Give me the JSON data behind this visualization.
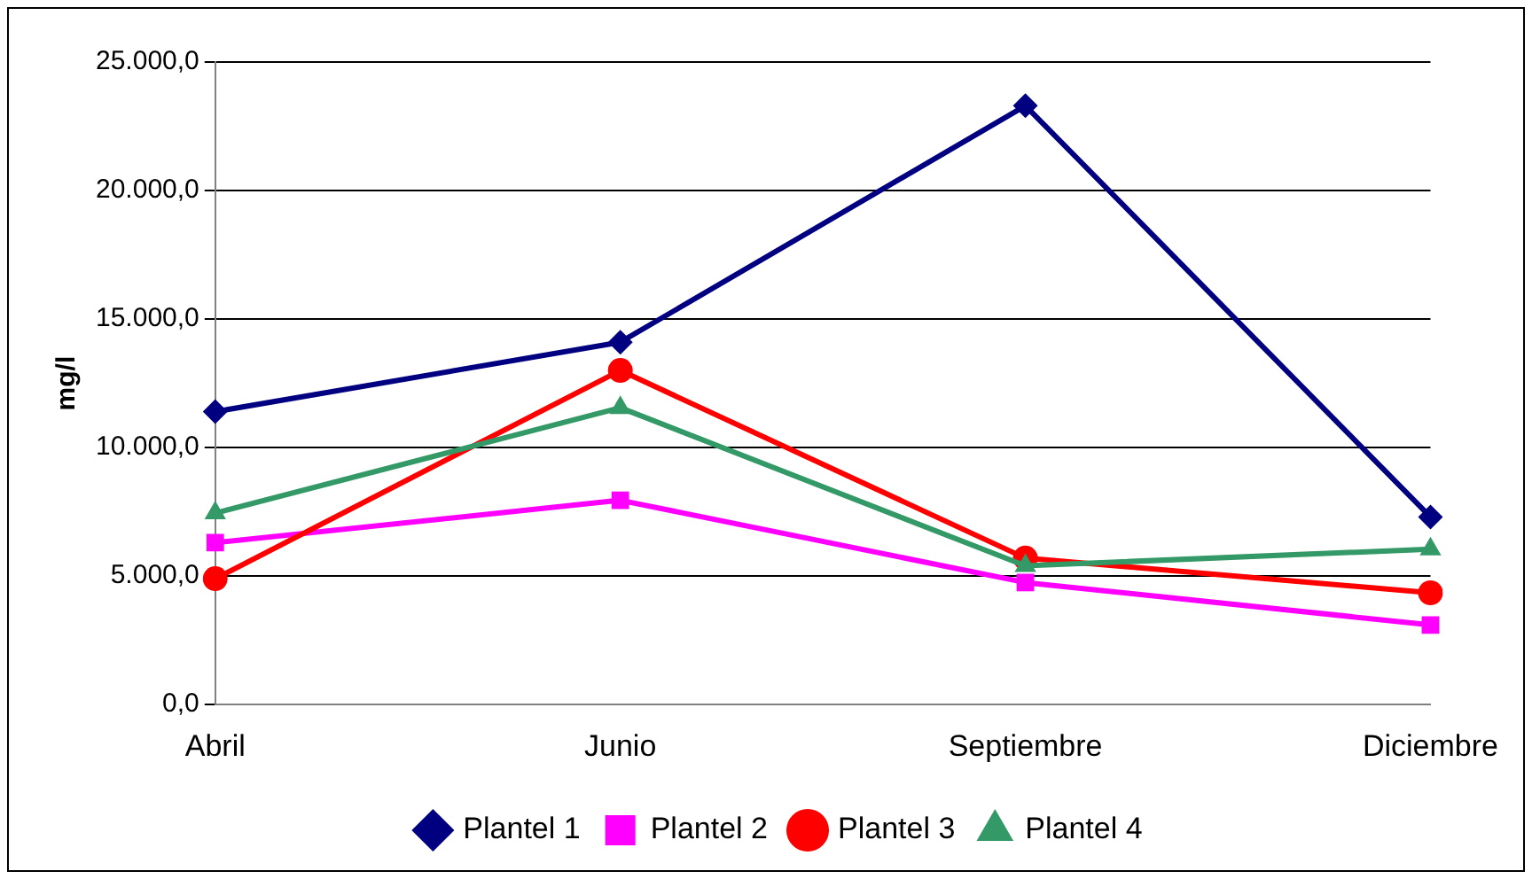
{
  "chart_data": {
    "type": "line",
    "ylabel": "mg/l",
    "categories": [
      "Abril",
      "Junio",
      "Septiembre",
      "Diciembre"
    ],
    "series": [
      {
        "name": "Plantel 1",
        "color": "#000080",
        "marker": "diamond",
        "values": [
          11400,
          14100,
          23300,
          7300
        ]
      },
      {
        "name": "Plantel 2",
        "color": "#ff00ff",
        "marker": "square",
        "values": [
          6300,
          7950,
          4750,
          3100
        ]
      },
      {
        "name": "Plantel 3",
        "color": "#ff0000",
        "marker": "circle",
        "values": [
          4900,
          13000,
          5700,
          4350
        ]
      },
      {
        "name": "Plantel 4",
        "color": "#339966",
        "marker": "triangle",
        "values": [
          7450,
          11550,
          5400,
          6050
        ]
      }
    ],
    "ylim": [
      0,
      25000
    ],
    "yticks": [
      {
        "value": 0,
        "label": "0,0"
      },
      {
        "value": 5000,
        "label": "5.000,0"
      },
      {
        "value": 10000,
        "label": "10.000,0"
      },
      {
        "value": 15000,
        "label": "15.000,0"
      },
      {
        "value": 20000,
        "label": "20.000,0"
      },
      {
        "value": 25000,
        "label": "25.000,0"
      }
    ],
    "grid": "y",
    "legend": "bottom",
    "line_style": "solid"
  }
}
